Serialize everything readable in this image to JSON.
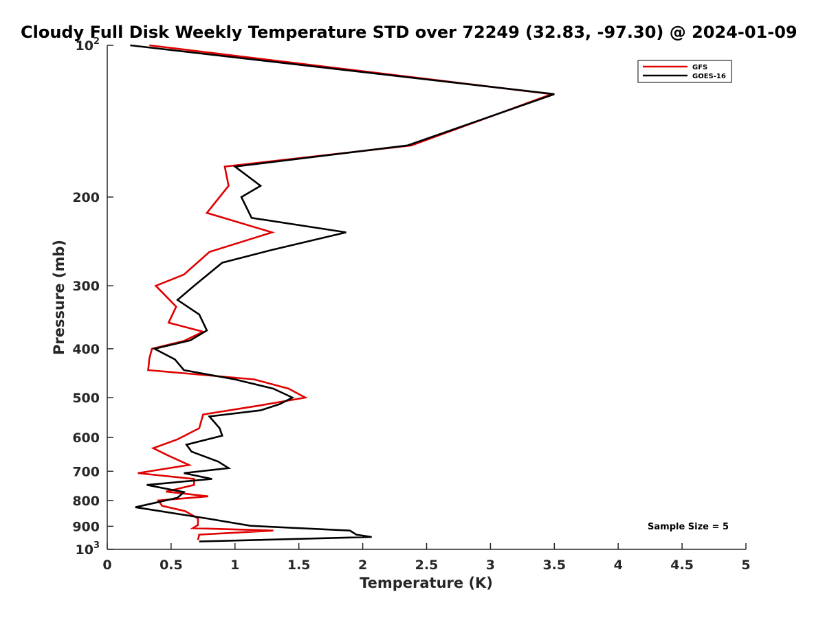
{
  "chart_data": {
    "type": "line",
    "title": "Cloudy Full Disk Weekly Temperature STD over 72249 (32.83, -97.30) @ 2024-01-09",
    "xlabel": "Temperature (K)",
    "ylabel": "Pressure (mb)",
    "xlim": [
      0,
      5
    ],
    "ylim": [
      1000,
      100
    ],
    "y_scale": "log",
    "y_reversed": true,
    "x_ticks": [
      0,
      0.5,
      1,
      1.5,
      2,
      2.5,
      3,
      3.5,
      4,
      4.5,
      5
    ],
    "x_tick_labels": [
      "0",
      "0.5",
      "1",
      "1.5",
      "2",
      "2.5",
      "3",
      "3.5",
      "4",
      "4.5",
      "5"
    ],
    "y_ticks": [
      100,
      200,
      300,
      400,
      500,
      600,
      700,
      800,
      900,
      1000
    ],
    "y_tick_labels": [
      {
        "base": "10",
        "exp": "2"
      },
      {
        "base": "200",
        "exp": ""
      },
      {
        "base": "300",
        "exp": ""
      },
      {
        "base": "400",
        "exp": ""
      },
      {
        "base": "500",
        "exp": ""
      },
      {
        "base": "600",
        "exp": ""
      },
      {
        "base": "700",
        "exp": ""
      },
      {
        "base": "800",
        "exp": ""
      },
      {
        "base": "900",
        "exp": ""
      },
      {
        "base": "10",
        "exp": "3"
      }
    ],
    "legend_position": "top-right",
    "annotation": "Sample Size = 5",
    "series": [
      {
        "name": "GFS",
        "color": "#e00000",
        "points": [
          [
            0.33,
            100
          ],
          [
            3.48,
            125
          ],
          [
            2.38,
            158
          ],
          [
            0.92,
            174
          ],
          [
            0.95,
            190
          ],
          [
            0.78,
            215
          ],
          [
            1.29,
            235
          ],
          [
            0.8,
            257
          ],
          [
            0.6,
            285
          ],
          [
            0.38,
            300
          ],
          [
            0.54,
            330
          ],
          [
            0.48,
            355
          ],
          [
            0.75,
            370
          ],
          [
            0.6,
            386
          ],
          [
            0.35,
            400
          ],
          [
            0.33,
            418
          ],
          [
            0.32,
            441
          ],
          [
            1.15,
            460
          ],
          [
            1.42,
            480
          ],
          [
            1.55,
            500
          ],
          [
            1.2,
            518
          ],
          [
            0.75,
            540
          ],
          [
            0.72,
            575
          ],
          [
            0.55,
            605
          ],
          [
            0.36,
            630
          ],
          [
            0.48,
            652
          ],
          [
            0.64,
            680
          ],
          [
            0.24,
            706
          ],
          [
            0.68,
            725
          ],
          [
            0.68,
            745
          ],
          [
            0.46,
            768
          ],
          [
            0.79,
            785
          ],
          [
            0.4,
            800
          ],
          [
            0.43,
            820
          ],
          [
            0.61,
            840
          ],
          [
            0.71,
            868
          ],
          [
            0.71,
            895
          ],
          [
            0.67,
            908
          ],
          [
            1.3,
            918
          ],
          [
            0.72,
            935
          ],
          [
            0.71,
            958
          ]
        ]
      },
      {
        "name": "GOES-16",
        "color": "#000000",
        "points": [
          [
            0.18,
            100
          ],
          [
            3.5,
            125
          ],
          [
            2.35,
            158
          ],
          [
            1.0,
            174
          ],
          [
            1.2,
            190
          ],
          [
            1.05,
            200
          ],
          [
            1.13,
            220
          ],
          [
            1.87,
            235
          ],
          [
            1.28,
            255
          ],
          [
            0.9,
            270
          ],
          [
            0.68,
            300
          ],
          [
            0.55,
            320
          ],
          [
            0.72,
            342
          ],
          [
            0.78,
            368
          ],
          [
            0.65,
            385
          ],
          [
            0.37,
            400
          ],
          [
            0.53,
            420
          ],
          [
            0.6,
            441
          ],
          [
            1.0,
            460
          ],
          [
            1.3,
            480
          ],
          [
            1.45,
            500
          ],
          [
            1.35,
            515
          ],
          [
            1.2,
            530
          ],
          [
            0.8,
            545
          ],
          [
            0.88,
            575
          ],
          [
            0.9,
            595
          ],
          [
            0.62,
            620
          ],
          [
            0.66,
            640
          ],
          [
            0.87,
            670
          ],
          [
            0.95,
            690
          ],
          [
            0.6,
            706
          ],
          [
            0.82,
            725
          ],
          [
            0.31,
            745
          ],
          [
            0.6,
            770
          ],
          [
            0.55,
            790
          ],
          [
            0.22,
            825
          ],
          [
            0.8,
            870
          ],
          [
            1.12,
            898
          ],
          [
            1.9,
            918
          ],
          [
            1.95,
            935
          ],
          [
            2.07,
            945
          ],
          [
            0.72,
            965
          ]
        ]
      }
    ]
  }
}
